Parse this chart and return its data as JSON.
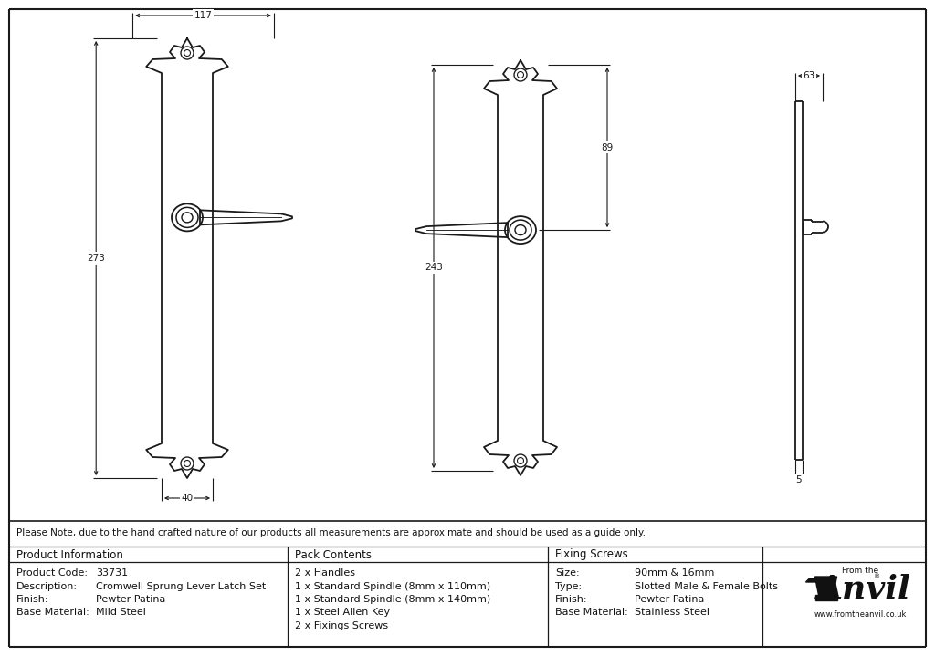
{
  "bg_color": "#ffffff",
  "line_color": "#1a1a1a",
  "dim_color": "#1a1a1a",
  "note_text": "Please Note, due to the hand crafted nature of our products all measurements are approximate and should be used as a guide only.",
  "product_info": {
    "header": "Product Information",
    "rows": [
      [
        "Product Code:",
        "33731"
      ],
      [
        "Description:",
        "Cromwell Sprung Lever Latch Set"
      ],
      [
        "Finish:",
        "Pewter Patina"
      ],
      [
        "Base Material:",
        "Mild Steel"
      ]
    ]
  },
  "pack_contents": {
    "header": "Pack Contents",
    "rows": [
      "2 x Handles",
      "1 x Standard Spindle (8mm x 110mm)",
      "1 x Standard Spindle (8mm x 140mm)",
      "1 x Steel Allen Key",
      "2 x Fixings Screws"
    ]
  },
  "fixing_screws": {
    "header": "Fixing Screws",
    "rows": [
      [
        "Size:",
        "90mm & 16mm"
      ],
      [
        "Type:",
        "Slotted Male & Female Bolts"
      ],
      [
        "Finish:",
        "Pewter Patina"
      ],
      [
        "Base Material:",
        "Stainless Steel"
      ]
    ]
  },
  "dim_117": "117",
  "dim_273": "273",
  "dim_40": "40",
  "dim_243": "243",
  "dim_89": "89",
  "dim_63": "63",
  "dim_5": "5"
}
